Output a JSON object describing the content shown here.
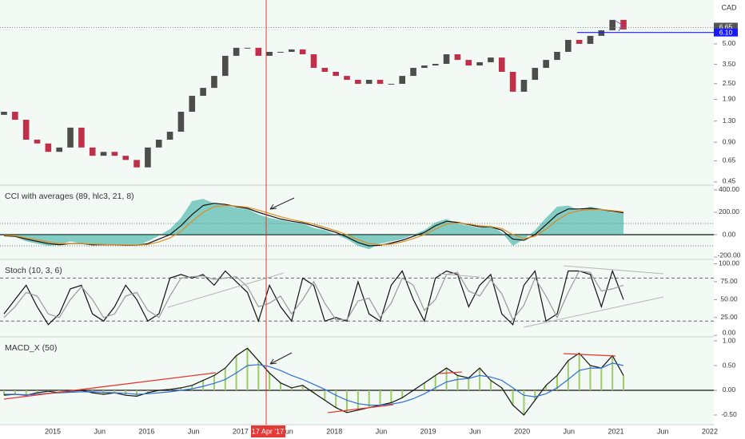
{
  "currency": "CAD",
  "x_axis": {
    "labels": [
      "2015",
      "Jun",
      "2016",
      "Jun",
      "2017",
      "Jun",
      "2018",
      "Jun",
      "2019",
      "Jun",
      "2020",
      "Jun",
      "2021",
      "Jun",
      "2022"
    ],
    "crosshair_label": "17 Apr '17"
  },
  "chart_data": [
    {
      "type": "candlestick",
      "log_scale": true,
      "ylim": [
        0.425,
        10.75
      ],
      "yticks": [
        0.45,
        {
          "value": 0.65,
          "label": "0.65"
        },
        {
          "value": 0.9,
          "label": "0.90"
        },
        {
          "value": 1.3,
          "label": "1.30"
        },
        {
          "value": 1.9,
          "label": "1.90"
        },
        {
          "value": 2.5,
          "label": "2.50"
        },
        {
          "value": 3.5,
          "label": "3.50"
        },
        {
          "value": 5,
          "label": "5.00"
        }
      ],
      "up_color": "#4d4d4d",
      "down_color": "#c0304a",
      "open": [
        1.45,
        1.53,
        1.33,
        0.94,
        0.88,
        0.76,
        0.82,
        1.16,
        0.82,
        0.71,
        0.76,
        0.71,
        0.66,
        0.58,
        0.82,
        0.94,
        1.08,
        1.53,
        2.02,
        2.32,
        2.86,
        4.06,
        4.67,
        4.67,
        4.06,
        4.35,
        4.35,
        4.54,
        4.17,
        3.29,
        3.07,
        2.86,
        2.67,
        2.49,
        2.67,
        2.49,
        2.49,
        2.86,
        3.29,
        3.43,
        3.53,
        4.17,
        3.78,
        3.43,
        3.63,
        3.94,
        3.07,
        2.17,
        2.67,
        3.29,
        3.78,
        4.35,
        5.36,
        5.0,
        5.75,
        6.34,
        7.6
      ],
      "close": [
        1.53,
        1.33,
        0.94,
        0.88,
        0.76,
        0.82,
        1.16,
        0.82,
        0.71,
        0.76,
        0.71,
        0.66,
        0.58,
        0.82,
        0.94,
        1.08,
        1.53,
        2.02,
        2.32,
        2.86,
        4.06,
        4.67,
        4.67,
        4.06,
        4.35,
        4.35,
        4.54,
        4.17,
        3.29,
        3.07,
        2.86,
        2.67,
        2.49,
        2.67,
        2.49,
        2.49,
        2.86,
        3.29,
        3.43,
        3.53,
        4.17,
        3.78,
        3.43,
        3.63,
        3.94,
        3.07,
        2.17,
        2.67,
        3.29,
        3.78,
        4.35,
        5.36,
        5.0,
        5.75,
        6.34,
        7.6,
        6.43
      ],
      "price_label": {
        "value": 6.65,
        "label": "6.65",
        "color": "#555555"
      },
      "level_label": {
        "value": 6.1,
        "label": "6.10",
        "color": "#1a1aff"
      }
    },
    {
      "type": "line",
      "title": "CCI with averages (89, hlc3, 21, 8)",
      "ylim": [
        -221,
        435
      ],
      "yticks": [
        {
          "value": 400,
          "label": "400.00"
        },
        {
          "value": 200,
          "label": "200.00"
        },
        {
          "value": 0,
          "label": "0.00"
        },
        {
          "value": -200,
          "label": "-200.00"
        }
      ],
      "hlines": [
        100,
        -100
      ],
      "zero_line": 0,
      "series": [
        {
          "color": "#26a69a",
          "area": true,
          "values": [
            -10,
            -20,
            -60,
            -80,
            -100,
            -90,
            -60,
            -80,
            -100,
            -90,
            -90,
            -100,
            -100,
            -60,
            -10,
            50,
            150,
            300,
            320,
            280,
            260,
            240,
            230,
            180,
            150,
            130,
            110,
            100,
            60,
            40,
            0,
            -40,
            -100,
            -130,
            -80,
            -60,
            -40,
            0,
            40,
            110,
            140,
            100,
            80,
            60,
            80,
            20,
            -100,
            -40,
            40,
            150,
            250,
            260,
            220,
            250,
            230,
            200,
            190
          ]
        },
        {
          "color": "#111111",
          "values": [
            -10,
            -15,
            -40,
            -60,
            -80,
            -90,
            -80,
            -80,
            -90,
            -90,
            -90,
            -95,
            -95,
            -80,
            -40,
            0,
            80,
            180,
            260,
            280,
            270,
            250,
            235,
            200,
            170,
            140,
            120,
            105,
            80,
            50,
            20,
            -20,
            -70,
            -100,
            -95,
            -75,
            -50,
            -15,
            20,
            80,
            120,
            110,
            90,
            70,
            70,
            40,
            -40,
            -50,
            0,
            90,
            180,
            230,
            230,
            235,
            225,
            210,
            195
          ]
        },
        {
          "color": "#e08a1e",
          "values": [
            -5,
            -10,
            -30,
            -45,
            -65,
            -80,
            -80,
            -80,
            -85,
            -88,
            -90,
            -92,
            -94,
            -88,
            -65,
            -30,
            30,
            120,
            200,
            250,
            260,
            255,
            245,
            220,
            190,
            160,
            135,
            115,
            95,
            65,
            35,
            0,
            -45,
            -80,
            -90,
            -85,
            -65,
            -35,
            0,
            50,
            95,
            105,
            95,
            80,
            72,
            55,
            0,
            -35,
            -15,
            50,
            130,
            190,
            215,
            225,
            225,
            215,
            205
          ]
        }
      ]
    },
    {
      "type": "line",
      "title": "Stoch (10, 3, 6)",
      "ylim": [
        -2,
        105
      ],
      "yticks": [
        {
          "value": 100,
          "label": "100.00"
        },
        {
          "value": 75,
          "label": "75.00"
        },
        {
          "value": 50,
          "label": "50.00"
        },
        {
          "value": 25,
          "label": "25.00"
        },
        {
          "value": 0,
          "label": "0.00"
        }
      ],
      "dashed_lines": [
        80,
        20
      ],
      "series": [
        {
          "color": "#111111",
          "values": [
            30,
            50,
            70,
            40,
            15,
            30,
            65,
            70,
            30,
            20,
            40,
            70,
            50,
            20,
            30,
            80,
            85,
            80,
            85,
            70,
            90,
            75,
            60,
            20,
            70,
            40,
            20,
            80,
            70,
            20,
            25,
            20,
            75,
            30,
            20,
            70,
            90,
            50,
            20,
            80,
            90,
            85,
            40,
            70,
            85,
            30,
            15,
            70,
            90,
            20,
            30,
            90,
            90,
            85,
            40,
            90,
            50
          ]
        },
        {
          "color": "#999999",
          "values": [
            25,
            40,
            60,
            55,
            30,
            25,
            50,
            68,
            50,
            25,
            30,
            55,
            60,
            35,
            25,
            55,
            80,
            82,
            83,
            78,
            80,
            82,
            68,
            40,
            45,
            55,
            30,
            50,
            75,
            45,
            22,
            22,
            48,
            52,
            25,
            45,
            80,
            70,
            35,
            50,
            85,
            88,
            62,
            55,
            78,
            58,
            22,
            42,
            80,
            55,
            25,
            60,
            90,
            88,
            62,
            65,
            70
          ]
        }
      ]
    },
    {
      "type": "line",
      "title": "MACD_X (50)",
      "ylim": [
        -0.694,
        1.065
      ],
      "yticks": [
        {
          "value": 1,
          "label": "1.00"
        },
        {
          "value": 0.5,
          "label": "0.50"
        },
        {
          "value": 0,
          "label": "0.00"
        },
        {
          "value": -0.5,
          "label": "-0.50"
        }
      ],
      "zero_line": 0,
      "series": [
        {
          "color": "#111111",
          "histogram_color": "#9ccc65",
          "values": [
            -0.1,
            -0.08,
            -0.1,
            -0.05,
            -0.02,
            -0.05,
            -0.02,
            0,
            -0.05,
            -0.08,
            -0.05,
            -0.1,
            -0.12,
            -0.05,
            0,
            0.02,
            0.05,
            0.1,
            0.2,
            0.3,
            0.45,
            0.7,
            0.85,
            0.6,
            0.35,
            0.15,
            0.05,
            0.1,
            -0.05,
            -0.2,
            -0.35,
            -0.45,
            -0.4,
            -0.35,
            -0.3,
            -0.25,
            -0.15,
            0,
            0.15,
            0.3,
            0.45,
            0.3,
            0.25,
            0.45,
            0.2,
            0.05,
            -0.3,
            -0.5,
            -0.2,
            0.1,
            0.3,
            0.6,
            0.75,
            0.5,
            0.45,
            0.7,
            0.3
          ]
        },
        {
          "color": "#2f6fd6",
          "values": [
            -0.08,
            -0.08,
            -0.09,
            -0.08,
            -0.06,
            -0.05,
            -0.04,
            -0.03,
            -0.03,
            -0.04,
            -0.05,
            -0.06,
            -0.08,
            -0.07,
            -0.05,
            -0.03,
            0,
            0.03,
            0.08,
            0.14,
            0.22,
            0.35,
            0.5,
            0.52,
            0.48,
            0.4,
            0.3,
            0.22,
            0.12,
            0.02,
            -0.1,
            -0.2,
            -0.27,
            -0.3,
            -0.3,
            -0.28,
            -0.24,
            -0.17,
            -0.07,
            0.05,
            0.17,
            0.22,
            0.24,
            0.3,
            0.27,
            0.2,
            0.05,
            -0.1,
            -0.13,
            -0.07,
            0.05,
            0.22,
            0.4,
            0.45,
            0.45,
            0.55,
            0.5
          ]
        }
      ]
    }
  ]
}
